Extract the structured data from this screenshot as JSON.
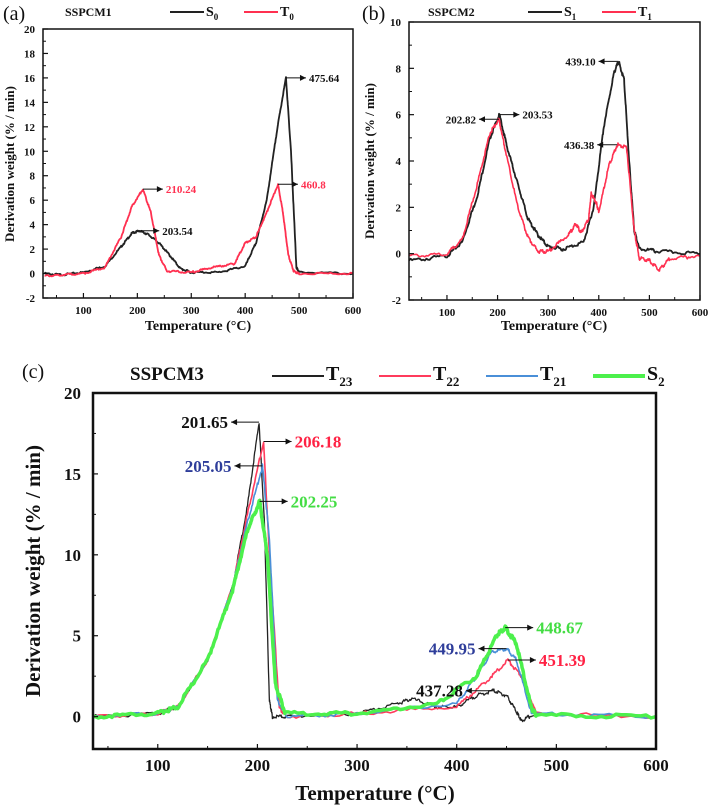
{
  "chart_data": [
    {
      "type": "line",
      "panel_label": "(a)",
      "title": "SSPCM1",
      "xlabel": "Temperature (°C)",
      "ylabel": "Derivation weight (% / min)",
      "xlim": [
        25,
        600
      ],
      "ylim": [
        -2,
        20
      ],
      "xticks": [
        100,
        200,
        300,
        400,
        500,
        600
      ],
      "yticks": [
        -2,
        0,
        2,
        4,
        6,
        8,
        10,
        12,
        14,
        16,
        18,
        20
      ],
      "grid": false,
      "legend": "top",
      "series": [
        {
          "name": "S",
          "sub": "0",
          "color": "#222222",
          "x": [
            28,
            60,
            100,
            140,
            170,
            190,
            203.54,
            220,
            240,
            260,
            280,
            300,
            350,
            400,
            420,
            440,
            460,
            475.64,
            485,
            495,
            500,
            600
          ],
          "y": [
            0,
            -0.1,
            0.1,
            0.6,
            2.2,
            3.3,
            3.5,
            3.2,
            2.5,
            1.5,
            0.4,
            0.1,
            0.1,
            0.6,
            2.5,
            6,
            12,
            16,
            10,
            0.5,
            0.1,
            0
          ]
        },
        {
          "name": "T",
          "sub": "0",
          "color": "#ff3050",
          "x": [
            28,
            60,
            100,
            140,
            170,
            190,
            210.24,
            225,
            240,
            255,
            300,
            340,
            380,
            400,
            420,
            440,
            460.8,
            470,
            480,
            490,
            500,
            600
          ],
          "y": [
            -0.2,
            -0.1,
            0,
            0.5,
            3,
            5.5,
            6.9,
            5,
            1.5,
            0.2,
            0.1,
            0.5,
            0.8,
            2.5,
            3,
            5,
            7.3,
            5,
            1.5,
            0.2,
            0,
            0
          ]
        }
      ],
      "annotations": [
        {
          "text": "475.64",
          "x": 475.64,
          "y": 16,
          "color": "#111111",
          "side": "right"
        },
        {
          "text": "210.24",
          "x": 210.24,
          "y": 6.9,
          "color": "#ff3050",
          "side": "right"
        },
        {
          "text": "460.8",
          "x": 460.8,
          "y": 7.3,
          "color": "#ff3050",
          "side": "right"
        },
        {
          "text": "203.54",
          "x": 203.54,
          "y": 3.5,
          "color": "#111111",
          "side": "right"
        }
      ]
    },
    {
      "type": "line",
      "panel_label": "(b)",
      "title": "SSPCM2",
      "xlabel": "Temperature (°C)",
      "ylabel": "Derivation weight (% / min)",
      "xlim": [
        25,
        600
      ],
      "ylim": [
        -2,
        10
      ],
      "xticks": [
        100,
        200,
        300,
        400,
        500,
        600
      ],
      "yticks": [
        -2,
        0,
        2,
        4,
        6,
        8,
        10
      ],
      "grid": false,
      "legend": "top",
      "series": [
        {
          "name": "S",
          "sub": "1",
          "color": "#222222",
          "x": [
            25,
            100,
            130,
            160,
            185,
            203.53,
            220,
            240,
            260,
            280,
            300,
            330,
            370,
            390,
            410,
            430,
            439.1,
            450,
            460,
            470,
            480,
            520,
            600
          ],
          "y": [
            -0.3,
            -0.1,
            0.5,
            2.5,
            5,
            6.0,
            4.5,
            3,
            1.5,
            0.8,
            0.3,
            0.2,
            0.5,
            2,
            5.5,
            7.8,
            8.3,
            7.5,
            4,
            1,
            0.2,
            0.1,
            0
          ]
        },
        {
          "name": "T",
          "sub": "1",
          "color": "#ff3050",
          "x": [
            25,
            100,
            130,
            160,
            185,
            202.82,
            215,
            240,
            260,
            280,
            300,
            340,
            355,
            365,
            380,
            385,
            395,
            400,
            420,
            436.38,
            455,
            470,
            480,
            500,
            520,
            540,
            600
          ],
          "y": [
            -0.1,
            0,
            0.6,
            3,
            5.2,
            5.8,
            4.5,
            2,
            0.7,
            0.1,
            0.1,
            0.8,
            1.3,
            0.9,
            1.5,
            2.6,
            2.2,
            1.8,
            3.8,
            4.7,
            4.6,
            1,
            -0.2,
            -0.3,
            -0.7,
            -0.2,
            -0.1
          ]
        }
      ],
      "annotations": [
        {
          "text": "439.10",
          "x": 439.1,
          "y": 8.3,
          "color": "#111111",
          "side": "left"
        },
        {
          "text": "202.82",
          "x": 202.82,
          "y": 5.8,
          "color": "#111111",
          "side": "left"
        },
        {
          "text": "203.53",
          "x": 203.53,
          "y": 6.0,
          "color": "#111111",
          "side": "right"
        },
        {
          "text": "436.38",
          "x": 436.38,
          "y": 4.7,
          "color": "#111111",
          "side": "left"
        }
      ]
    },
    {
      "type": "line",
      "panel_label": "(c)",
      "title": "SSPCM3",
      "xlabel": "Temperature (°C)",
      "ylabel": "Derivation weight (% / min)",
      "xlim": [
        35,
        600
      ],
      "ylim": [
        -2,
        20
      ],
      "xticks": [
        100,
        200,
        300,
        400,
        500,
        600
      ],
      "yticks": [
        0,
        5,
        10,
        15,
        20
      ],
      "grid": false,
      "legend": "top",
      "series": [
        {
          "name": "T",
          "sub": "23",
          "color": "#222222",
          "x": [
            35,
            100,
            120,
            150,
            175,
            190,
            201.65,
            207,
            212,
            215,
            230,
            300,
            340,
            355,
            380,
            400,
            420,
            437.28,
            450,
            460,
            465,
            475,
            600
          ],
          "y": [
            0,
            0.2,
            0.6,
            3.5,
            8,
            13,
            18.2,
            12,
            1,
            0,
            0,
            0.2,
            0.8,
            1.1,
            0.6,
            0.6,
            1.3,
            1.6,
            1.3,
            0.3,
            -0.3,
            0.1,
            0
          ]
        },
        {
          "name": "T",
          "sub": "22",
          "color": "#ff3b5c",
          "x": [
            35,
            100,
            120,
            150,
            175,
            190,
            206.18,
            212,
            222,
            230,
            300,
            400,
            430,
            451.39,
            465,
            480,
            600
          ],
          "y": [
            0,
            0.2,
            0.6,
            3.5,
            8,
            12.5,
            17,
            10,
            0.5,
            0,
            0.2,
            0.6,
            2.2,
            3.5,
            2.5,
            0.2,
            0
          ]
        },
        {
          "name": "T",
          "sub": "21",
          "color": "#4a8fd8",
          "x": [
            35,
            100,
            120,
            150,
            175,
            190,
            205.05,
            212,
            220,
            230,
            300,
            400,
            420,
            435,
            449.95,
            460,
            475,
            600
          ],
          "y": [
            0,
            0.2,
            0.6,
            3.5,
            8,
            12,
            15.5,
            11,
            1,
            0,
            0.2,
            0.8,
            2.5,
            4,
            4.2,
            3.5,
            0.2,
            0
          ]
        },
        {
          "name": "S",
          "sub": "2",
          "color": "#4cf04c",
          "x": [
            35,
            100,
            120,
            150,
            175,
            190,
            202.25,
            210,
            218,
            228,
            300,
            380,
            420,
            440,
            448.67,
            460,
            475,
            480,
            600
          ],
          "y": [
            0,
            0.2,
            0.6,
            3.5,
            7.8,
            11.5,
            13.3,
            10,
            2,
            0.2,
            0.2,
            0.8,
            2.5,
            5,
            5.5,
            4.5,
            0.5,
            0.1,
            0
          ]
        }
      ],
      "annotations": [
        {
          "text": "201.65",
          "x": 201.65,
          "y": 18.2,
          "color": "#111111",
          "side": "left"
        },
        {
          "text": "206.18",
          "x": 206.18,
          "y": 17,
          "color": "#ff2244",
          "side": "right"
        },
        {
          "text": "205.05",
          "x": 205.05,
          "y": 15.5,
          "color": "#2e3d9a",
          "side": "left"
        },
        {
          "text": "202.25",
          "x": 202.25,
          "y": 13.3,
          "color": "#44dd44",
          "side": "right"
        },
        {
          "text": "448.67",
          "x": 448.67,
          "y": 5.5,
          "color": "#44dd44",
          "side": "right"
        },
        {
          "text": "449.95",
          "x": 449.95,
          "y": 4.2,
          "color": "#2e3d9a",
          "side": "left"
        },
        {
          "text": "451.39",
          "x": 451.39,
          "y": 3.5,
          "color": "#ff2244",
          "side": "right"
        },
        {
          "text": "437.28",
          "x": 437.28,
          "y": 1.6,
          "color": "#111111",
          "side": "left"
        }
      ]
    }
  ]
}
